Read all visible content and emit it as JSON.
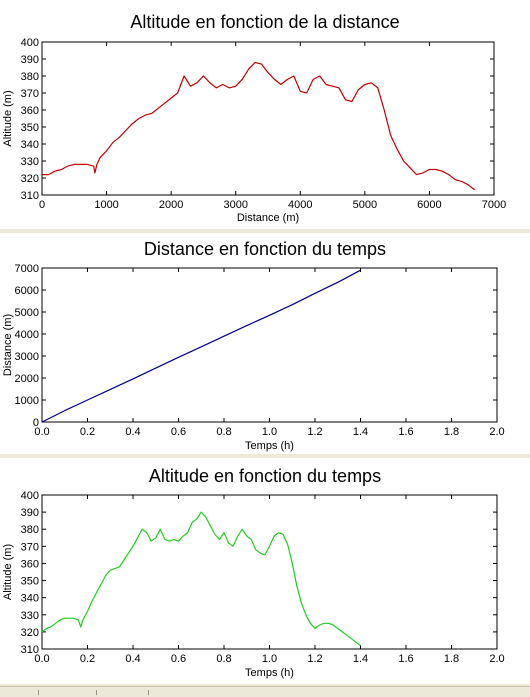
{
  "colors": {
    "alt_dist": "#c00000",
    "dist_time": "#00008b",
    "alt_time": "#22cc22"
  },
  "chart_data": [
    {
      "type": "line",
      "title": "Altitude en fonction de la distance",
      "xlabel": "Distance (m)",
      "ylabel": "Altitude (m)",
      "xlim": [
        0,
        7000
      ],
      "ylim": [
        310,
        400
      ],
      "xticks": [
        "0",
        "1000",
        "2000",
        "3000",
        "4000",
        "5000",
        "6000",
        "7000"
      ],
      "yticks": [
        "310",
        "320",
        "330",
        "340",
        "350",
        "360",
        "370",
        "380",
        "390",
        "400"
      ],
      "series": [
        {
          "color": "#c00000",
          "x": [
            0,
            100,
            200,
            300,
            400,
            500,
            600,
            700,
            800,
            820,
            850,
            900,
            1000,
            1100,
            1200,
            1300,
            1400,
            1500,
            1600,
            1700,
            1800,
            1900,
            2000,
            2100,
            2200,
            2300,
            2400,
            2500,
            2600,
            2700,
            2800,
            2900,
            3000,
            3100,
            3200,
            3300,
            3400,
            3500,
            3600,
            3700,
            3800,
            3900,
            4000,
            4100,
            4200,
            4300,
            4400,
            4500,
            4600,
            4700,
            4800,
            4900,
            5000,
            5100,
            5200,
            5300,
            5400,
            5500,
            5600,
            5700,
            5800,
            5900,
            6000,
            6100,
            6200,
            6300,
            6400,
            6500,
            6600,
            6700
          ],
          "y": [
            322,
            322,
            324,
            325,
            327,
            328,
            328,
            328,
            327,
            323,
            328,
            332,
            336,
            341,
            344,
            348,
            352,
            355,
            357,
            358,
            361,
            364,
            367,
            370,
            380,
            374,
            376,
            380,
            376,
            373,
            375,
            373,
            374,
            378,
            384,
            388,
            387,
            382,
            378,
            375,
            378,
            380,
            371,
            370,
            378,
            380,
            375,
            374,
            373,
            366,
            365,
            372,
            375,
            376,
            373,
            360,
            345,
            337,
            330,
            326,
            322,
            323,
            325,
            325,
            324,
            322,
            319,
            318,
            316,
            313
          ]
        }
      ]
    },
    {
      "type": "line",
      "title": "Distance en fonction du temps",
      "xlabel": "Temps (h)",
      "ylabel": "Distance (m)",
      "xlim": [
        0,
        2
      ],
      "ylim": [
        0,
        7000
      ],
      "xticks": [
        "0.0",
        "0.2",
        "0.4",
        "0.6",
        "0.8",
        "1.0",
        "1.2",
        "1.4",
        "1.6",
        "1.8",
        "2.0"
      ],
      "yticks": [
        "0",
        "1000",
        "2000",
        "3000",
        "4000",
        "5000",
        "6000",
        "7000"
      ],
      "series": [
        {
          "color": "#00008b",
          "x": [
            0,
            0.1,
            0.2,
            0.3,
            0.4,
            0.5,
            0.6,
            0.7,
            0.8,
            0.9,
            1.0,
            1.1,
            1.2,
            1.3,
            1.4
          ],
          "y": [
            0,
            520,
            1000,
            1480,
            1960,
            2450,
            2940,
            3420,
            3900,
            4380,
            4850,
            5330,
            5850,
            6350,
            6900
          ]
        }
      ]
    },
    {
      "type": "line",
      "title": "Altitude en fonction du temps",
      "xlabel": "Temps (h)",
      "ylabel": "Altitude (m)",
      "xlim": [
        0,
        2
      ],
      "ylim": [
        310,
        400
      ],
      "xticks": [
        "0.0",
        "0.2",
        "0.4",
        "0.6",
        "0.8",
        "1.0",
        "1.2",
        "1.4",
        "1.6",
        "1.8",
        "2.0"
      ],
      "yticks": [
        "310",
        "320",
        "330",
        "340",
        "350",
        "360",
        "370",
        "380",
        "390",
        "400"
      ],
      "series": [
        {
          "color": "#22cc22",
          "x": [
            0,
            0.02,
            0.04,
            0.06,
            0.08,
            0.1,
            0.12,
            0.14,
            0.16,
            0.17,
            0.18,
            0.2,
            0.22,
            0.24,
            0.26,
            0.28,
            0.3,
            0.32,
            0.34,
            0.36,
            0.38,
            0.4,
            0.42,
            0.44,
            0.46,
            0.48,
            0.5,
            0.52,
            0.54,
            0.56,
            0.58,
            0.6,
            0.62,
            0.64,
            0.66,
            0.68,
            0.7,
            0.72,
            0.74,
            0.76,
            0.78,
            0.8,
            0.82,
            0.84,
            0.86,
            0.88,
            0.9,
            0.92,
            0.94,
            0.96,
            0.98,
            1.0,
            1.02,
            1.04,
            1.06,
            1.08,
            1.1,
            1.12,
            1.14,
            1.16,
            1.18,
            1.2,
            1.22,
            1.24,
            1.26,
            1.28,
            1.3,
            1.32,
            1.34,
            1.36,
            1.38,
            1.4
          ],
          "y": [
            320,
            322,
            323,
            325,
            327,
            328,
            328,
            328,
            327,
            323,
            327,
            332,
            338,
            343,
            348,
            353,
            356,
            357,
            358,
            362,
            366,
            370,
            375,
            380,
            378,
            373,
            375,
            380,
            374,
            373,
            374,
            373,
            376,
            378,
            384,
            386,
            390,
            387,
            382,
            377,
            374,
            378,
            372,
            370,
            376,
            380,
            376,
            374,
            368,
            366,
            365,
            370,
            376,
            378,
            377,
            371,
            360,
            347,
            337,
            330,
            325,
            322,
            324,
            325,
            325,
            324,
            322,
            320,
            318,
            316,
            314,
            312
          ]
        }
      ]
    }
  ]
}
